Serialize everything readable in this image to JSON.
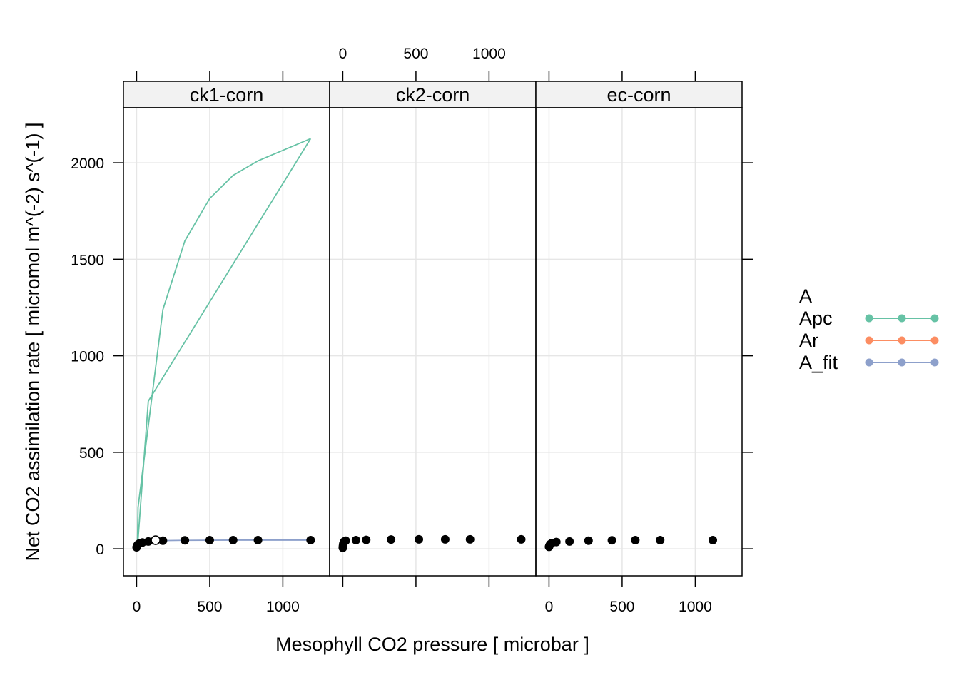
{
  "chart_data": {
    "type": "line",
    "xlabel": "Mesophyll CO2 pressure [ microbar ]",
    "ylabel": "Net CO2 assimilation rate [ micromol m^(-2) s^(-1) ]",
    "xlim": [
      -90,
      1320
    ],
    "ylim": [
      -140,
      2285
    ],
    "x_ticks": [
      0,
      500,
      1000
    ],
    "y_ticks": [
      0,
      500,
      1000,
      1500,
      2000
    ],
    "grid": true,
    "legend_position": "right",
    "legend": [
      {
        "label": "A",
        "color": "#000000",
        "symbol": "none"
      },
      {
        "label": "Apc",
        "color": "#66C2A5",
        "symbol": "line-point"
      },
      {
        "label": "Ar",
        "color": "#FC8D62",
        "symbol": "line-point"
      },
      {
        "label": "A_fit",
        "color": "#8DA0CB",
        "symbol": "line-point"
      }
    ],
    "colors": {
      "A": "#000000",
      "Apc": "#66C2A5",
      "Ar": "#FC8D62",
      "A_fit": "#8DA0CB"
    },
    "panels": [
      {
        "name": "ck1-corn",
        "A": {
          "x": [
            0,
            2,
            5,
            10,
            20,
            40,
            80,
            130,
            180,
            330,
            500,
            660,
            830,
            1190
          ],
          "y": [
            8,
            12,
            18,
            22,
            28,
            33,
            38,
            42,
            42,
            44,
            45,
            45,
            45,
            45
          ]
        },
        "Apc": {
          "x": [
            1190,
            830,
            660,
            500,
            330,
            180,
            10,
            5,
            80,
            1190
          ],
          "y": [
            2125,
            2010,
            1935,
            1815,
            1595,
            1240,
            215,
            0,
            765,
            2125
          ]
        },
        "Ar": {
          "x": [
            0,
            20,
            50,
            80,
            110
          ],
          "y": [
            35,
            38,
            40,
            41,
            42
          ]
        },
        "A_fit": {
          "x": [
            0,
            20,
            60,
            130,
            330,
            660,
            1190
          ],
          "y": [
            10,
            30,
            36,
            42,
            44,
            45,
            45
          ]
        },
        "open_point": {
          "x": 130,
          "y": 45
        }
      },
      {
        "name": "ck2-corn",
        "A": {
          "x": [
            0,
            1,
            3,
            6,
            10,
            20,
            90,
            160,
            330,
            520,
            700,
            870,
            1220
          ],
          "y": [
            5,
            15,
            25,
            32,
            38,
            42,
            45,
            46,
            48,
            49,
            49,
            49,
            49
          ]
        }
      },
      {
        "name": "ec-corn",
        "A": {
          "x": [
            0,
            2,
            5,
            10,
            20,
            50,
            140,
            270,
            430,
            590,
            760,
            1120
          ],
          "y": [
            10,
            15,
            20,
            25,
            30,
            35,
            38,
            42,
            44,
            45,
            45,
            45
          ]
        }
      }
    ]
  }
}
